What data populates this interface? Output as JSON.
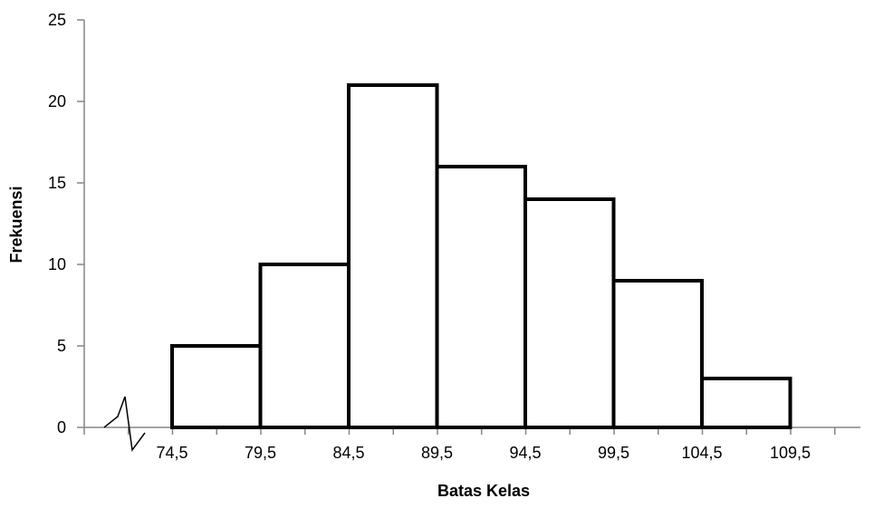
{
  "chart_data": {
    "type": "bar",
    "histogram": true,
    "bin_edges": [
      74.5,
      79.5,
      84.5,
      89.5,
      94.5,
      99.5,
      104.5,
      109.5
    ],
    "x_tick_labels": [
      "74,5",
      "79,5",
      "84,5",
      "89,5",
      "94,5",
      "99,5",
      "104,5",
      "109,5"
    ],
    "values": [
      5,
      10,
      21,
      16,
      14,
      9,
      3
    ],
    "y_ticks": [
      "0",
      "5",
      "10",
      "15",
      "20",
      "25"
    ],
    "ylim": [
      0,
      25
    ],
    "xlabel": "Batas Kelas",
    "ylabel": "Frekuensi",
    "axis_break": true,
    "grid": false,
    "bar_fill": "#ffffff",
    "bar_stroke": "#000000",
    "axis_color": "#868686"
  }
}
